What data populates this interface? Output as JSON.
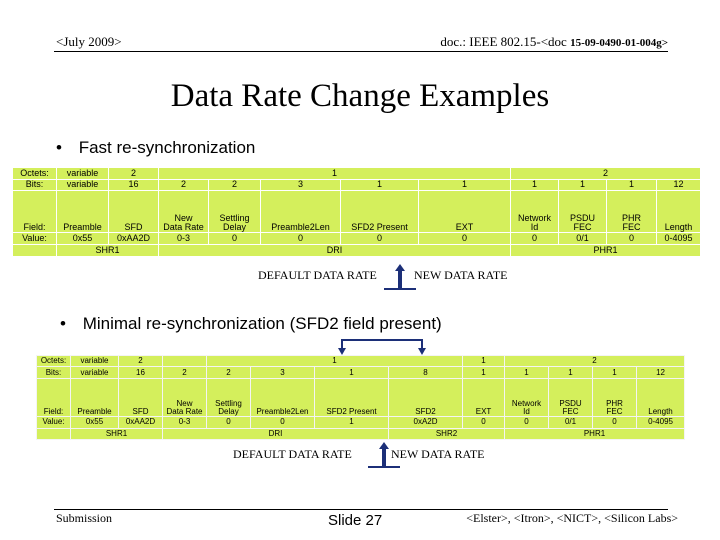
{
  "header": {
    "left": "<July 2009>",
    "right_prefix": "doc.: IEEE 802.15-<doc",
    "right_suffix": "15-09-0490-01-004g>"
  },
  "title": "Data Rate Change Examples",
  "section1": {
    "bullet_mark": "•",
    "bullet": "Fast re-synchronization",
    "table": {
      "labels": {
        "octets": "Octets:",
        "bits": "Bits:",
        "field": "Field:",
        "value": "Value:"
      },
      "octets": [
        "variable",
        "2",
        "1",
        "2"
      ],
      "bits": [
        "variable",
        "16",
        "2",
        "2",
        "3",
        "1",
        "1",
        "1",
        "1",
        "1",
        "12"
      ],
      "fields": [
        "Preamble",
        "SFD",
        "New\nData Rate",
        "Settling\nDelay",
        "Preamble2Len",
        "SFD2 Present",
        "EXT",
        "Network\nId",
        "PSDU\nFEC",
        "PHR\nFEC",
        "Length"
      ],
      "values": [
        "0x55",
        "0xAA2D",
        "0-3",
        "0",
        "0",
        "0",
        "0",
        "0",
        "0/1",
        "0",
        "0-4095"
      ],
      "groups": [
        "SHR1",
        "DRI",
        "PHR1"
      ]
    },
    "default_label": "DEFAULT DATA RATE",
    "new_label": "NEW DATA RATE"
  },
  "section2": {
    "bullet_mark": "•",
    "bullet": "Minimal re-synchronization (SFD2 field present)",
    "table": {
      "labels": {
        "octets": "Octets:",
        "bits": "Bits:",
        "field": "Field:",
        "value": "Value:"
      },
      "octets": [
        "variable",
        "2",
        "1",
        "1",
        "2"
      ],
      "bits": [
        "variable",
        "16",
        "2",
        "2",
        "3",
        "1",
        "8",
        "1",
        "1",
        "1",
        "1",
        "12"
      ],
      "fields": [
        "Preamble",
        "SFD",
        "New\nData Rate",
        "Settling\nDelay",
        "Preamble2Len",
        "SFD2 Present",
        "SFD2",
        "EXT",
        "Network\nId",
        "PSDU\nFEC",
        "PHR\nFEC",
        "Length"
      ],
      "values": [
        "0x55",
        "0xAA2D",
        "0-3",
        "0",
        "0",
        "1",
        "0xA2D",
        "0",
        "0",
        "0/1",
        "0",
        "0-4095"
      ],
      "groups": [
        "SHR1",
        "DRI",
        "SHR2",
        "PHR1"
      ]
    },
    "default_label": "DEFAULT DATA RATE",
    "new_label": "NEW DATA RATE"
  },
  "footer": {
    "left": "Submission",
    "center": "Slide 27",
    "right": "<Elster>, <Itron>, <NICT>, <Silicon Labs>"
  }
}
